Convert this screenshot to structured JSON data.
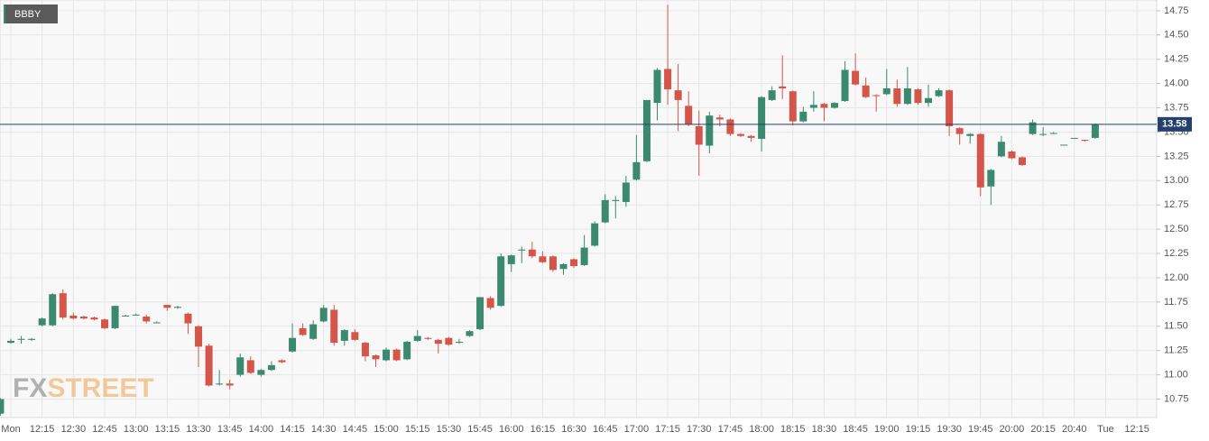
{
  "chart_data": {
    "type": "candlestick",
    "symbol": "BBBY",
    "watermark": [
      "FX",
      "STREET"
    ],
    "categories": [
      "Mon",
      "12:15",
      "12:30",
      "12:45",
      "13:00",
      "13:15",
      "13:30",
      "13:45",
      "14:00",
      "14:15",
      "14:30",
      "14:45",
      "15:00",
      "15:15",
      "15:30",
      "15:45",
      "16:00",
      "16:15",
      "16:30",
      "16:45",
      "17:00",
      "17:15",
      "17:30",
      "17:45",
      "18:00",
      "18:15",
      "18:30",
      "18:45",
      "19:00",
      "19:15",
      "19:30",
      "19:45",
      "20:00",
      "20:15",
      "20:40",
      "Tue",
      "12:15"
    ],
    "open": [
      10.6,
      11.33,
      11.37,
      11.36,
      11.51,
      11.51,
      11.84,
      11.61,
      11.6,
      11.59,
      11.57,
      11.48,
      11.61,
      11.62,
      11.6,
      11.54,
      11.72,
      11.69,
      11.63,
      11.5,
      11.3,
      10.9,
      10.91,
      11.0,
      11.15,
      11.0,
      11.05,
      11.15,
      11.24,
      11.48,
      11.37,
      11.55,
      11.67,
      11.35,
      11.44,
      11.33,
      11.2,
      11.15,
      11.26,
      11.16,
      11.35,
      11.38,
      11.36,
      11.38,
      11.33,
      11.4,
      11.47,
      11.79,
      11.71,
      12.14,
      12.28,
      12.29,
      12.22,
      12.22,
      12.09,
      12.19,
      12.13,
      12.33,
      12.57,
      12.79,
      12.78,
      13.01,
      13.2,
      13.8,
      14.15,
      13.93,
      13.77,
      13.56,
      13.36,
      13.65,
      13.63,
      13.48,
      13.46,
      13.43,
      13.83,
      13.97,
      13.92,
      13.61,
      13.75,
      13.79,
      13.75,
      13.82,
      14.13,
      13.98,
      13.88,
      13.89,
      13.95,
      13.79,
      13.94,
      13.8,
      13.87,
      13.93,
      13.54,
      13.46,
      13.48,
      12.94,
      13.25,
      13.3,
      13.24,
      13.48,
      13.47,
      13.49,
      13.37,
      13.44,
      13.42,
      13.44
    ],
    "high": [
      10.76,
      11.37,
      11.4,
      11.38,
      11.59,
      11.84,
      11.88,
      11.64,
      11.61,
      11.6,
      11.58,
      11.71,
      11.62,
      11.63,
      11.62,
      11.55,
      11.72,
      11.71,
      11.64,
      11.51,
      11.32,
      11.05,
      10.95,
      11.22,
      11.19,
      11.06,
      11.14,
      11.16,
      11.53,
      11.53,
      11.56,
      11.72,
      11.72,
      11.47,
      11.47,
      11.34,
      11.21,
      11.28,
      11.27,
      11.35,
      11.46,
      11.39,
      11.37,
      11.39,
      11.37,
      11.46,
      11.8,
      11.81,
      12.25,
      12.24,
      12.32,
      12.37,
      12.27,
      12.23,
      12.15,
      12.2,
      12.44,
      12.58,
      12.86,
      12.84,
      13.05,
      13.47,
      13.83,
      14.16,
      14.81,
      14.2,
      13.92,
      13.72,
      13.71,
      13.68,
      13.64,
      13.49,
      13.47,
      13.87,
      13.97,
      14.29,
      13.93,
      13.76,
      13.92,
      13.8,
      13.81,
      14.23,
      14.31,
      14.06,
      13.89,
      14.15,
      14.04,
      14.17,
      13.95,
      13.99,
      13.95,
      13.94,
      13.55,
      13.49,
      13.49,
      13.12,
      13.46,
      13.31,
      13.25,
      13.63,
      13.55,
      13.5,
      13.37,
      13.44,
      13.42,
      13.59
    ],
    "low": [
      10.58,
      11.32,
      11.32,
      11.35,
      11.5,
      11.5,
      11.57,
      11.57,
      11.57,
      11.56,
      11.47,
      11.47,
      11.6,
      11.61,
      11.53,
      11.53,
      11.66,
      11.68,
      11.42,
      11.08,
      10.88,
      10.89,
      10.85,
      10.98,
      11.01,
      10.98,
      11.04,
      11.12,
      11.23,
      11.4,
      11.36,
      11.54,
      11.3,
      11.3,
      11.35,
      11.14,
      11.08,
      11.14,
      11.14,
      11.15,
      11.34,
      11.36,
      11.22,
      11.3,
      11.32,
      11.39,
      11.46,
      11.67,
      11.7,
      12.06,
      12.15,
      12.2,
      12.15,
      12.06,
      12.03,
      12.1,
      12.12,
      12.32,
      12.56,
      12.61,
      12.73,
      13.0,
      13.19,
      13.62,
      13.78,
      13.51,
      13.56,
      13.05,
      13.28,
      13.56,
      13.46,
      13.45,
      13.4,
      13.3,
      13.82,
      13.84,
      13.57,
      13.6,
      13.71,
      13.61,
      13.74,
      13.81,
      13.98,
      13.85,
      13.71,
      13.88,
      13.76,
      13.78,
      13.78,
      13.76,
      13.86,
      13.46,
      13.37,
      13.38,
      12.84,
      12.75,
      13.24,
      13.22,
      13.15,
      13.47,
      13.46,
      13.48,
      13.37,
      13.44,
      13.4,
      13.43
    ],
    "close": [
      10.75,
      11.35,
      11.37,
      11.37,
      11.58,
      11.83,
      11.59,
      11.58,
      11.58,
      11.57,
      11.48,
      11.71,
      11.61,
      11.62,
      11.55,
      11.54,
      11.69,
      11.7,
      11.53,
      11.29,
      10.89,
      10.91,
      10.89,
      11.18,
      11.02,
      11.05,
      11.1,
      11.13,
      11.38,
      11.41,
      11.52,
      11.69,
      11.33,
      11.46,
      11.36,
      11.19,
      11.16,
      11.26,
      11.15,
      11.34,
      11.4,
      11.37,
      11.32,
      11.31,
      11.34,
      11.45,
      11.8,
      11.69,
      12.22,
      12.23,
      12.29,
      12.22,
      12.16,
      12.08,
      12.14,
      12.12,
      12.31,
      12.56,
      12.8,
      12.8,
      12.98,
      13.19,
      13.83,
      14.14,
      13.94,
      13.83,
      13.58,
      13.37,
      13.67,
      13.63,
      13.48,
      13.46,
      13.44,
      13.86,
      13.93,
      13.95,
      13.61,
      13.71,
      13.78,
      13.75,
      13.8,
      14.14,
      13.99,
      13.86,
      13.87,
      13.95,
      13.79,
      13.95,
      13.8,
      13.85,
      13.93,
      13.56,
      13.48,
      13.48,
      12.93,
      13.11,
      13.4,
      13.23,
      13.16,
      13.6,
      13.48,
      13.49,
      13.37,
      13.44,
      13.41,
      13.58
    ],
    "up_color": "#3b8a70",
    "down_color": "#d4564a",
    "price_line": 13.58,
    "price_line_color": "#24406e",
    "ylim": [
      10.56,
      14.86
    ],
    "yticks": [
      10.75,
      {
        "value": 11,
        "label": "11.00"
      },
      11.25,
      {
        "value": 11.5,
        "label": "11.50"
      },
      11.75,
      {
        "value": 12,
        "label": "12.00"
      },
      12.25,
      {
        "value": 12.5,
        "label": "12.50"
      },
      12.75,
      {
        "value": 13,
        "label": "13.00"
      },
      13.25,
      {
        "value": 13.5,
        "label": "13.50"
      },
      13.75,
      {
        "value": 14,
        "label": "14.00"
      },
      14.25,
      {
        "value": 14.5,
        "label": "14.50"
      },
      14.75
    ],
    "grid": true
  }
}
